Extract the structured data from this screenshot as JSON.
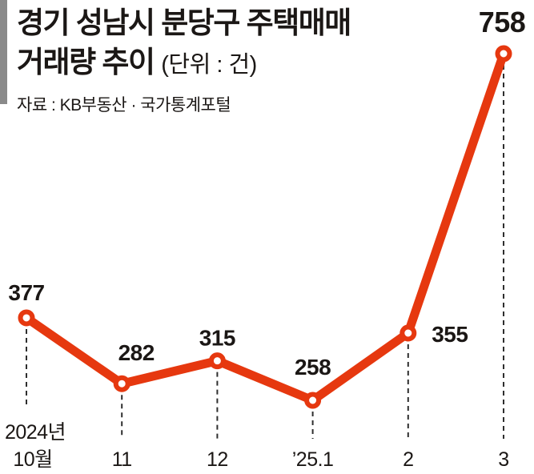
{
  "header": {
    "title_line1": "경기 성남시 분당구 주택매매",
    "title_line2": "거래량 추이",
    "unit": "(단위 : 건)",
    "source": "자료 : KB부동산 · 국가통계포털"
  },
  "chart_data": {
    "type": "line",
    "title": "경기 성남시 분당구 주택매매 거래량 추이",
    "unit_note": "단위 : 건",
    "source": "자료 : KB부동산 · 국가통계포털",
    "categories": [
      "2024년 10월",
      "11",
      "12",
      "’25.1",
      "2",
      "3"
    ],
    "x_tick_lines": [
      [
        "2024년",
        "10월"
      ],
      [
        "11"
      ],
      [
        "12"
      ],
      [
        "’25.1"
      ],
      [
        "2"
      ],
      [
        "3"
      ]
    ],
    "values": [
      377,
      282,
      315,
      258,
      355,
      758
    ],
    "ylim": [
      258,
      758
    ],
    "grid": "off",
    "legend": "none",
    "line_color": "#e6380f",
    "marker_fill": "#ffffff",
    "text_color": "#1b1715",
    "guide_color": "#2e2e2e",
    "accent_bar_color": "#8a8a8a"
  }
}
